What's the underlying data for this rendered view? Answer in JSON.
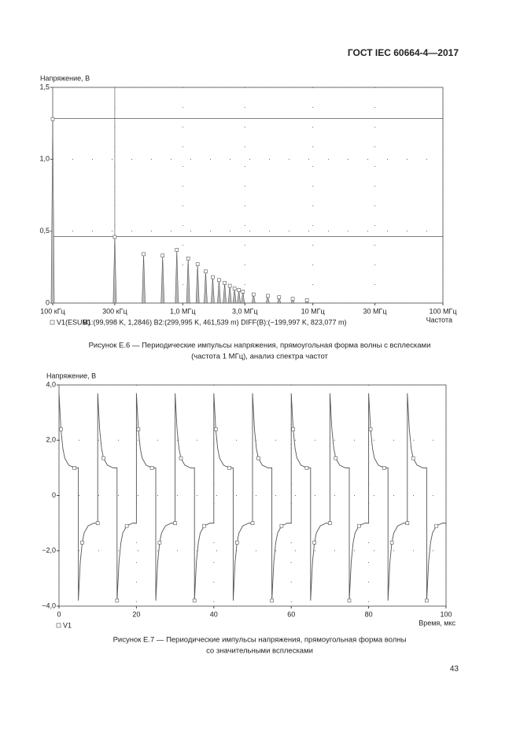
{
  "header": "ГОСТ IEC 60664-4—2017",
  "page_number": "43",
  "chart_data": [
    {
      "type": "stem",
      "y_label": "Напряжение, В",
      "x_label": "Частота",
      "xscale": "log",
      "xlim": [
        100000,
        100000000
      ],
      "xticks": [
        {
          "value": 100000,
          "label": "100 кГц"
        },
        {
          "value": 300000,
          "label": "300 кГц"
        },
        {
          "value": 1000000,
          "label": "1,0 МГц"
        },
        {
          "value": 3000000,
          "label": "3,0 МГц"
        },
        {
          "value": 10000000,
          "label": "10 МГц"
        },
        {
          "value": 30000000,
          "label": "30 МГц"
        },
        {
          "value": 100000000,
          "label": "100 МГц"
        }
      ],
      "ylim": [
        0,
        1.5
      ],
      "yticks": [
        0,
        {
          "value": 0.5,
          "label": "0,5"
        },
        {
          "value": 1,
          "label": "1,0"
        },
        {
          "value": 1.5,
          "label": "1,5"
        }
      ],
      "grid": true,
      "color": "#555555",
      "legend": "V1(ESUM)",
      "cursor_readout": "B1:(99,998 K, 1,2846) B2:(299,995 K, 461,539 m) DIFF(B):(−199,997 K, 823,077 m)",
      "cursors": [
        {
          "x": 99998,
          "y": 1.2846
        },
        {
          "x": 299995,
          "y": 0.461539
        }
      ],
      "x": [
        100000,
        300000,
        500000,
        700000,
        900000,
        1100000,
        1300000,
        1500000,
        1700000,
        1900000,
        2100000,
        2300000,
        2500000,
        2700000,
        2900000,
        3500000,
        4500000,
        5500000,
        7000000,
        9000000
      ],
      "values": [
        1.28,
        0.46,
        0.34,
        0.33,
        0.37,
        0.31,
        0.27,
        0.22,
        0.18,
        0.16,
        0.14,
        0.12,
        0.1,
        0.09,
        0.08,
        0.06,
        0.05,
        0.04,
        0.03,
        0.02
      ],
      "caption": [
        "Рисунок Е.6 — Периодические импульсы напряжения, прямоугольная форма волны с всплесками",
        "(частота 1 МГц), анализ спектра частот"
      ]
    },
    {
      "type": "line",
      "y_label": "Напряжение, В",
      "x_label": "Время, мкс",
      "xlim": [
        0,
        100
      ],
      "xticks": [
        0,
        20,
        40,
        60,
        80,
        100
      ],
      "ylim": [
        -4,
        4
      ],
      "yticks": [
        {
          "value": -4,
          "label": "−4,0"
        },
        {
          "value": -2,
          "label": "−2,0"
        },
        0,
        {
          "value": 2,
          "label": "2,0"
        },
        {
          "value": 4,
          "label": "4,0"
        }
      ],
      "grid": true,
      "color": "#555555",
      "legend": "V1",
      "x": [
        0,
        0.5,
        1,
        1.5,
        2.5,
        4,
        5,
        5,
        5.5,
        6,
        6.5,
        7.5,
        9,
        10,
        10,
        10.5,
        11,
        11.5,
        12.5,
        14,
        15,
        15,
        15.5,
        16,
        16.5,
        17.5,
        19,
        20,
        20,
        20.5,
        21,
        21.5,
        22.5,
        24,
        25,
        25,
        25.5,
        26,
        26.5,
        27.5,
        29,
        30,
        30,
        30.5,
        31,
        31.5,
        32.5,
        34,
        35,
        35,
        35.5,
        36,
        36.5,
        37.5,
        39,
        40,
        40,
        40.5,
        41,
        41.5,
        42.5,
        44,
        45,
        45,
        45.5,
        46,
        46.5,
        47.5,
        49,
        50,
        50,
        50.5,
        51,
        51.5,
        52.5,
        54,
        55,
        55,
        55.5,
        56,
        56.5,
        57.5,
        59,
        60,
        60,
        60.5,
        61,
        61.5,
        62.5,
        64,
        65,
        65,
        65.5,
        66,
        66.5,
        67.5,
        69,
        70,
        70,
        70.5,
        71,
        71.5,
        72.5,
        74,
        75,
        75,
        75.5,
        76,
        76.5,
        77.5,
        79,
        80,
        80,
        80.5,
        81,
        81.5,
        82.5,
        84,
        85,
        85,
        85.5,
        86,
        86.5,
        87.5,
        89,
        90,
        90,
        90.5,
        91,
        91.5,
        92.5,
        94,
        95,
        95,
        95.5,
        96,
        96.5,
        97.5,
        99,
        100
      ],
      "values": [
        3.7,
        2.4,
        1.7,
        1.35,
        1.1,
        1,
        1,
        -3.8,
        -2.4,
        -1.7,
        -1.35,
        -1.1,
        -1,
        -1,
        3.7,
        2.4,
        1.7,
        1.35,
        1.1,
        1,
        1,
        -3.8,
        -2.4,
        -1.7,
        -1.35,
        -1.1,
        -1,
        -1,
        3.7,
        2.4,
        1.7,
        1.35,
        1.1,
        1,
        1,
        -3.8,
        -2.4,
        -1.7,
        -1.35,
        -1.1,
        -1,
        -1,
        3.7,
        2.4,
        1.7,
        1.35,
        1.1,
        1,
        1,
        -3.8,
        -2.4,
        -1.7,
        -1.35,
        -1.1,
        -1,
        -1,
        3.7,
        2.4,
        1.7,
        1.35,
        1.1,
        1,
        1,
        -3.8,
        -2.4,
        -1.7,
        -1.35,
        -1.1,
        -1,
        -1,
        3.7,
        2.4,
        1.7,
        1.35,
        1.1,
        1,
        1,
        -3.8,
        -2.4,
        -1.7,
        -1.35,
        -1.1,
        -1,
        -1,
        3.7,
        2.4,
        1.7,
        1.35,
        1.1,
        1,
        1,
        -3.8,
        -2.4,
        -1.7,
        -1.35,
        -1.1,
        -1,
        -1,
        3.7,
        2.4,
        1.7,
        1.35,
        1.1,
        1,
        1,
        -3.8,
        -2.4,
        -1.7,
        -1.35,
        -1.1,
        -1,
        -1,
        3.7,
        2.4,
        1.7,
        1.35,
        1.1,
        1,
        1,
        -3.8,
        -2.4,
        -1.7,
        -1.35,
        -1.1,
        -1,
        -1,
        3.7,
        2.4,
        1.7,
        1.35,
        1.1,
        1,
        1,
        -3.8,
        -2.4,
        -1.7,
        -1.35,
        -1.1,
        -1,
        -1
      ],
      "caption": [
        "Рисунок Е.7 — Периодические импульсы напряжения, прямоугольная форма волны",
        "со значительными всплесками"
      ]
    }
  ]
}
